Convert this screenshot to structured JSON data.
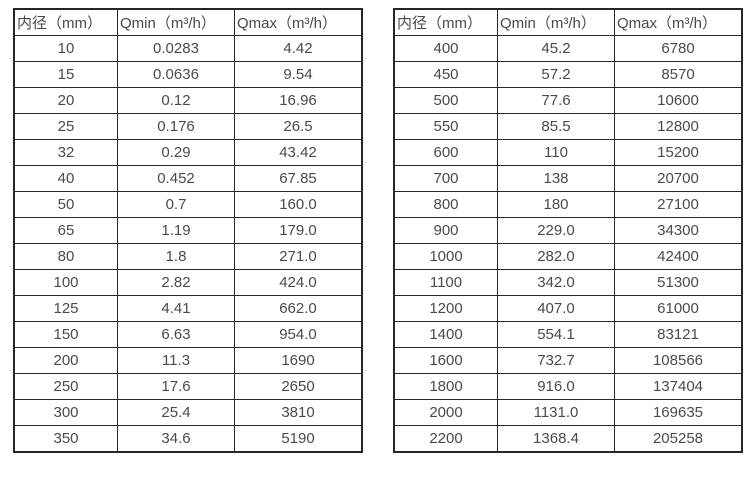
{
  "text_color": "#4a4a4a",
  "border_color": "#262626",
  "tables": [
    {
      "name": "flow-table-small-diameters",
      "headers": [
        "内径（mm）",
        "Qmin（m³/h）",
        "Qmax（m³/h）"
      ],
      "rows": [
        [
          "10",
          "0.0283",
          "4.42"
        ],
        [
          "15",
          "0.0636",
          "9.54"
        ],
        [
          "20",
          "0.12",
          "16.96"
        ],
        [
          "25",
          "0.176",
          "26.5"
        ],
        [
          "32",
          "0.29",
          "43.42"
        ],
        [
          "40",
          "0.452",
          "67.85"
        ],
        [
          "50",
          "0.7",
          "160.0"
        ],
        [
          "65",
          "1.19",
          "179.0"
        ],
        [
          "80",
          "1.8",
          "271.0"
        ],
        [
          "100",
          "2.82",
          "424.0"
        ],
        [
          "125",
          "4.41",
          "662.0"
        ],
        [
          "150",
          "6.63",
          "954.0"
        ],
        [
          "200",
          "11.3",
          "1690"
        ],
        [
          "250",
          "17.6",
          "2650"
        ],
        [
          "300",
          "25.4",
          "3810"
        ],
        [
          "350",
          "34.6",
          "5190"
        ]
      ]
    },
    {
      "name": "flow-table-large-diameters",
      "headers": [
        "内径（mm）",
        "Qmin（m³/h）",
        "Qmax（m³/h）"
      ],
      "rows": [
        [
          "400",
          "45.2",
          "6780"
        ],
        [
          "450",
          "57.2",
          "8570"
        ],
        [
          "500",
          "77.6",
          "10600"
        ],
        [
          "550",
          "85.5",
          "12800"
        ],
        [
          "600",
          "110",
          "15200"
        ],
        [
          "700",
          "138",
          "20700"
        ],
        [
          "800",
          "180",
          "27100"
        ],
        [
          "900",
          "229.0",
          "34300"
        ],
        [
          "1000",
          "282.0",
          "42400"
        ],
        [
          "1100",
          "342.0",
          "51300"
        ],
        [
          "1200",
          "407.0",
          "61000"
        ],
        [
          "1400",
          "554.1",
          "83121"
        ],
        [
          "1600",
          "732.7",
          "108566"
        ],
        [
          "1800",
          "916.0",
          "137404"
        ],
        [
          "2000",
          "1131.0",
          "169635"
        ],
        [
          "2200",
          "1368.4",
          "205258"
        ]
      ]
    }
  ]
}
